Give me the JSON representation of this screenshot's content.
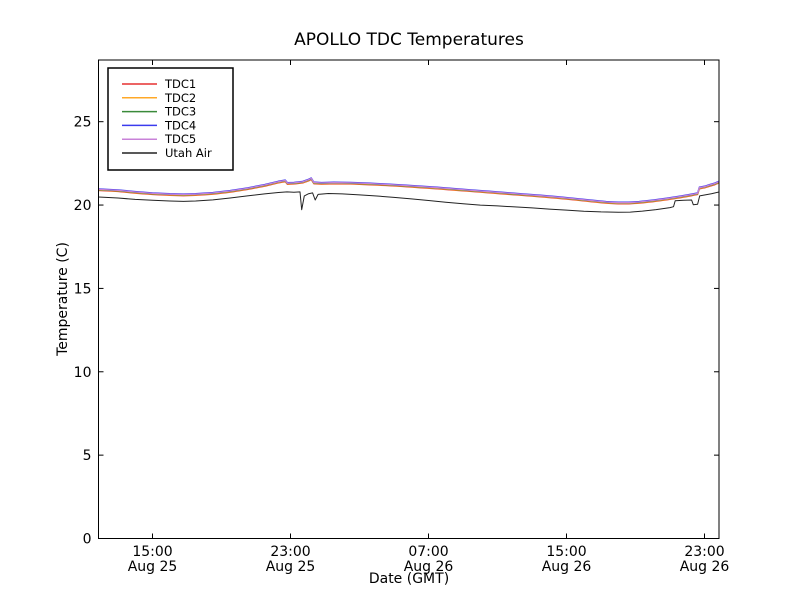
{
  "window": {
    "background": "#ffffff"
  },
  "chart_data": {
    "type": "line",
    "title": "APOLLO TDC Temperatures",
    "xlabel": "Date (GMT)",
    "ylabel": "Temperature (C)",
    "grid": false,
    "legend_position": "upper left",
    "axis_color": "#000000",
    "ylim": [
      0,
      28.7
    ],
    "xlim_hours": [
      11.87,
      47.84
    ],
    "y_ticks": [
      0,
      5,
      10,
      15,
      20,
      25
    ],
    "x_ticks": [
      {
        "hour": 15,
        "time": "15:00",
        "date": "Aug 25"
      },
      {
        "hour": 23,
        "time": "23:00",
        "date": "Aug 25"
      },
      {
        "hour": 31,
        "time": "07:00",
        "date": "Aug 26"
      },
      {
        "hour": 39,
        "time": "15:00",
        "date": "Aug 26"
      },
      {
        "hour": 47,
        "time": "23:00",
        "date": "Aug 26"
      }
    ],
    "series": [
      {
        "name": "TDC1",
        "color": "#e53030",
        "points": "tdc_cluster",
        "offset": -0.05,
        "width": 1.3
      },
      {
        "name": "TDC2",
        "color": "#ffa828",
        "points": "tdc_cluster",
        "offset": -0.025,
        "width": 1.3
      },
      {
        "name": "TDC3",
        "color": "#3a8a3a",
        "points": "tdc_cluster",
        "offset": 0.0,
        "width": 1.3
      },
      {
        "name": "TDC4",
        "color": "#3b3bee",
        "points": "tdc_cluster",
        "offset": 0.05,
        "width": 1.3
      },
      {
        "name": "TDC5",
        "color": "#c882d8",
        "points": "tdc_cluster",
        "offset": 0.02,
        "width": 1.3
      },
      {
        "name": "Utah Air",
        "color": "#222222",
        "points": "utah_air",
        "offset": 0.0,
        "width": 1.0
      }
    ],
    "points": {
      "tdc_cluster": [
        [
          11.87,
          20.92
        ],
        [
          13,
          20.86
        ],
        [
          14,
          20.76
        ],
        [
          15,
          20.68
        ],
        [
          16,
          20.63
        ],
        [
          16.8,
          20.61
        ],
        [
          17.5,
          20.63
        ],
        [
          18.5,
          20.7
        ],
        [
          19.5,
          20.82
        ],
        [
          20.5,
          20.98
        ],
        [
          21.5,
          21.18
        ],
        [
          22.3,
          21.38
        ],
        [
          22.7,
          21.45
        ],
        [
          22.82,
          21.29
        ],
        [
          23.2,
          21.31
        ],
        [
          23.7,
          21.37
        ],
        [
          24.05,
          21.5
        ],
        [
          24.2,
          21.58
        ],
        [
          24.35,
          21.33
        ],
        [
          24.8,
          21.3
        ],
        [
          25.5,
          21.32
        ],
        [
          26.5,
          21.31
        ],
        [
          27.5,
          21.27
        ],
        [
          28.5,
          21.22
        ],
        [
          29.5,
          21.16
        ],
        [
          30.5,
          21.09
        ],
        [
          31.5,
          21.02
        ],
        [
          32.5,
          20.94
        ],
        [
          33.5,
          20.86
        ],
        [
          34.5,
          20.78
        ],
        [
          35.5,
          20.7
        ],
        [
          36.5,
          20.62
        ],
        [
          37.5,
          20.54
        ],
        [
          38.5,
          20.45
        ],
        [
          39.5,
          20.35
        ],
        [
          40.5,
          20.24
        ],
        [
          41.3,
          20.16
        ],
        [
          42,
          20.12
        ],
        [
          42.6,
          20.12
        ],
        [
          43.2,
          20.16
        ],
        [
          44,
          20.25
        ],
        [
          44.8,
          20.36
        ],
        [
          45.6,
          20.49
        ],
        [
          46.1,
          20.58
        ],
        [
          46.45,
          20.65
        ],
        [
          46.6,
          20.68
        ],
        [
          46.7,
          21.02
        ],
        [
          47,
          21.08
        ],
        [
          47.3,
          21.18
        ],
        [
          47.6,
          21.27
        ],
        [
          47.84,
          21.38
        ]
      ],
      "utah_air": [
        [
          11.87,
          20.48
        ],
        [
          13,
          20.42
        ],
        [
          14,
          20.34
        ],
        [
          15,
          20.29
        ],
        [
          16,
          20.24
        ],
        [
          16.8,
          20.22
        ],
        [
          17.5,
          20.24
        ],
        [
          18.5,
          20.31
        ],
        [
          19.5,
          20.42
        ],
        [
          20.5,
          20.55
        ],
        [
          21.5,
          20.67
        ],
        [
          22.3,
          20.75
        ],
        [
          22.8,
          20.79
        ],
        [
          23.2,
          20.77
        ],
        [
          23.55,
          20.79
        ],
        [
          23.65,
          19.72
        ],
        [
          23.8,
          20.55
        ],
        [
          24.05,
          20.68
        ],
        [
          24.28,
          20.73
        ],
        [
          24.43,
          20.3
        ],
        [
          24.6,
          20.64
        ],
        [
          25.2,
          20.69
        ],
        [
          26,
          20.67
        ],
        [
          27,
          20.61
        ],
        [
          28,
          20.54
        ],
        [
          29,
          20.46
        ],
        [
          30,
          20.37
        ],
        [
          31,
          20.27
        ],
        [
          32,
          20.17
        ],
        [
          33,
          20.08
        ],
        [
          34,
          20.0
        ],
        [
          35,
          19.95
        ],
        [
          36,
          19.89
        ],
        [
          37,
          19.83
        ],
        [
          38,
          19.76
        ],
        [
          39,
          19.7
        ],
        [
          40,
          19.63
        ],
        [
          41,
          19.59
        ],
        [
          42,
          19.57
        ],
        [
          42.7,
          19.58
        ],
        [
          43.4,
          19.64
        ],
        [
          44.2,
          19.73
        ],
        [
          45,
          19.85
        ],
        [
          45.2,
          19.9
        ],
        [
          45.3,
          20.26
        ],
        [
          45.8,
          20.29
        ],
        [
          46.25,
          20.3
        ],
        [
          46.35,
          20.02
        ],
        [
          46.6,
          20.05
        ],
        [
          46.72,
          20.55
        ],
        [
          47,
          20.6
        ],
        [
          47.4,
          20.68
        ],
        [
          47.84,
          20.78
        ]
      ]
    }
  }
}
